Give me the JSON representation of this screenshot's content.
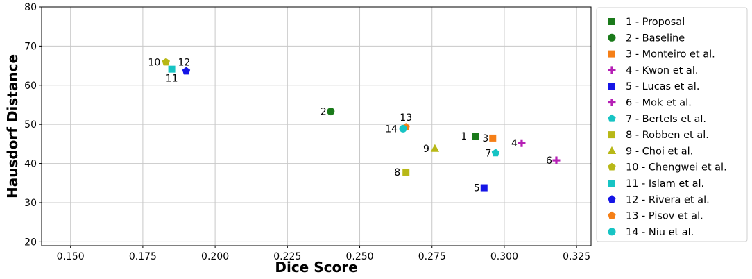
{
  "chart_data": {
    "type": "scatter",
    "title": "",
    "xlabel": "Dice Score",
    "ylabel": "Hausdorf Distance",
    "xlim": [
      0.14,
      0.33
    ],
    "ylim": [
      19,
      80
    ],
    "xticks": [
      "0.150",
      "0.175",
      "0.200",
      "0.225",
      "0.250",
      "0.275",
      "0.300",
      "0.325"
    ],
    "yticks": [
      "20",
      "30",
      "40",
      "50",
      "60",
      "70",
      "80"
    ],
    "grid": true,
    "legend_position": "outside-right",
    "series": [
      {
        "id": "1",
        "name": "1 - Proposal",
        "marker": "square",
        "color": "#1a7a1a",
        "x": 0.29,
        "y": 47.0,
        "label": "1"
      },
      {
        "id": "2",
        "name": "2 - Baseline",
        "marker": "circle",
        "color": "#1a7a1a",
        "x": 0.24,
        "y": 53.3,
        "label": "2"
      },
      {
        "id": "3",
        "name": "3 - Monteiro et al.",
        "marker": "square",
        "color": "#f57f17",
        "x": 0.296,
        "y": 46.5,
        "label": "3"
      },
      {
        "id": "4",
        "name": "4 - Kwon et al.",
        "marker": "plus",
        "color": "#b51fb5",
        "x": 0.306,
        "y": 45.2,
        "label": "4"
      },
      {
        "id": "5",
        "name": "5 - Lucas et al.",
        "marker": "square",
        "color": "#1515e6",
        "x": 0.293,
        "y": 33.8,
        "label": "5"
      },
      {
        "id": "6",
        "name": "6 - Mok et al.",
        "marker": "plus",
        "color": "#b51fb5",
        "x": 0.318,
        "y": 40.8,
        "label": "6"
      },
      {
        "id": "7",
        "name": "7 - Bertels et al.",
        "marker": "pentagon",
        "color": "#17c4c4",
        "x": 0.297,
        "y": 42.7,
        "label": "7"
      },
      {
        "id": "8",
        "name": "8 - Robben et al.",
        "marker": "square",
        "color": "#b8b817",
        "x": 0.266,
        "y": 37.8,
        "label": "8"
      },
      {
        "id": "9",
        "name": "9 - Choi et al.",
        "marker": "triangle",
        "color": "#b8b817",
        "x": 0.276,
        "y": 43.8,
        "label": "9"
      },
      {
        "id": "10",
        "name": "10 - Chengwei et al.",
        "marker": "pentagon",
        "color": "#b8b817",
        "x": 0.183,
        "y": 65.9,
        "label": "10"
      },
      {
        "id": "11",
        "name": "11 - Islam et al.",
        "marker": "square",
        "color": "#17c4c4",
        "x": 0.185,
        "y": 64.1,
        "label": "11"
      },
      {
        "id": "12",
        "name": "12 - Rivera et al.",
        "marker": "pentagon",
        "color": "#1515e6",
        "x": 0.19,
        "y": 63.6,
        "label": "12"
      },
      {
        "id": "13",
        "name": "13 - Pisov et al.",
        "marker": "pentagon",
        "color": "#f57f17",
        "x": 0.266,
        "y": 49.3,
        "label": "13"
      },
      {
        "id": "14",
        "name": "14 - Niu et al.",
        "marker": "circle",
        "color": "#17c4c4",
        "x": 0.265,
        "y": 48.9,
        "label": "14"
      }
    ]
  }
}
